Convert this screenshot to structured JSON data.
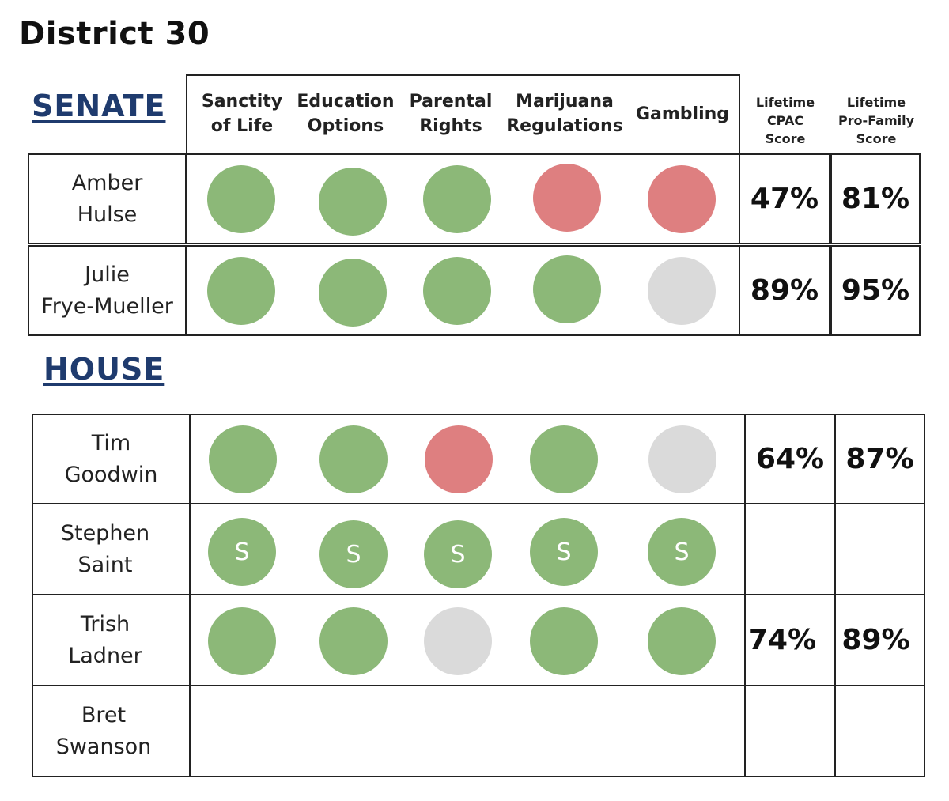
{
  "title": "District 30",
  "senate": {
    "heading": "SENATE",
    "issue_headers": [
      [
        "Sanctity",
        "of Life"
      ],
      [
        "Education",
        "Options"
      ],
      [
        "Parental",
        "Rights"
      ],
      [
        "Marijuana",
        "Regulations"
      ],
      [
        "Gambling"
      ]
    ],
    "score_headers": [
      [
        "Lifetime",
        "CPAC",
        "Score"
      ],
      [
        "Lifetime",
        "Pro-Family",
        "Score"
      ]
    ],
    "rows": [
      {
        "name_lines": [
          "Amber",
          "Hulse"
        ],
        "votes": [
          "green",
          "green",
          "green",
          "red",
          "red"
        ],
        "cpac": "47%",
        "profamily": "81%"
      },
      {
        "name_lines": [
          "Julie",
          "Frye-Mueller"
        ],
        "votes": [
          "green",
          "green",
          "green",
          "green",
          "gray"
        ],
        "cpac": "89%",
        "profamily": "95%"
      }
    ]
  },
  "house": {
    "heading": "HOUSE",
    "rows": [
      {
        "name_lines": [
          "Tim",
          "Goodwin"
        ],
        "votes": [
          "green",
          "green",
          "red",
          "green",
          "gray"
        ],
        "cpac": "64%",
        "profamily": "87%"
      },
      {
        "name_lines": [
          "Stephen",
          "Saint"
        ],
        "votes": [
          "green",
          "green",
          "green",
          "green",
          "green"
        ],
        "vote_labels": [
          "S",
          "S",
          "S",
          "S",
          "S"
        ],
        "cpac": "",
        "profamily": ""
      },
      {
        "name_lines": [
          "Trish",
          "Ladner"
        ],
        "votes": [
          "green",
          "green",
          "gray",
          "green",
          "green"
        ],
        "cpac": "74%",
        "profamily": "89%"
      },
      {
        "name_lines": [
          "Bret",
          "Swanson"
        ],
        "votes": [],
        "cpac": "",
        "profamily": ""
      }
    ]
  }
}
